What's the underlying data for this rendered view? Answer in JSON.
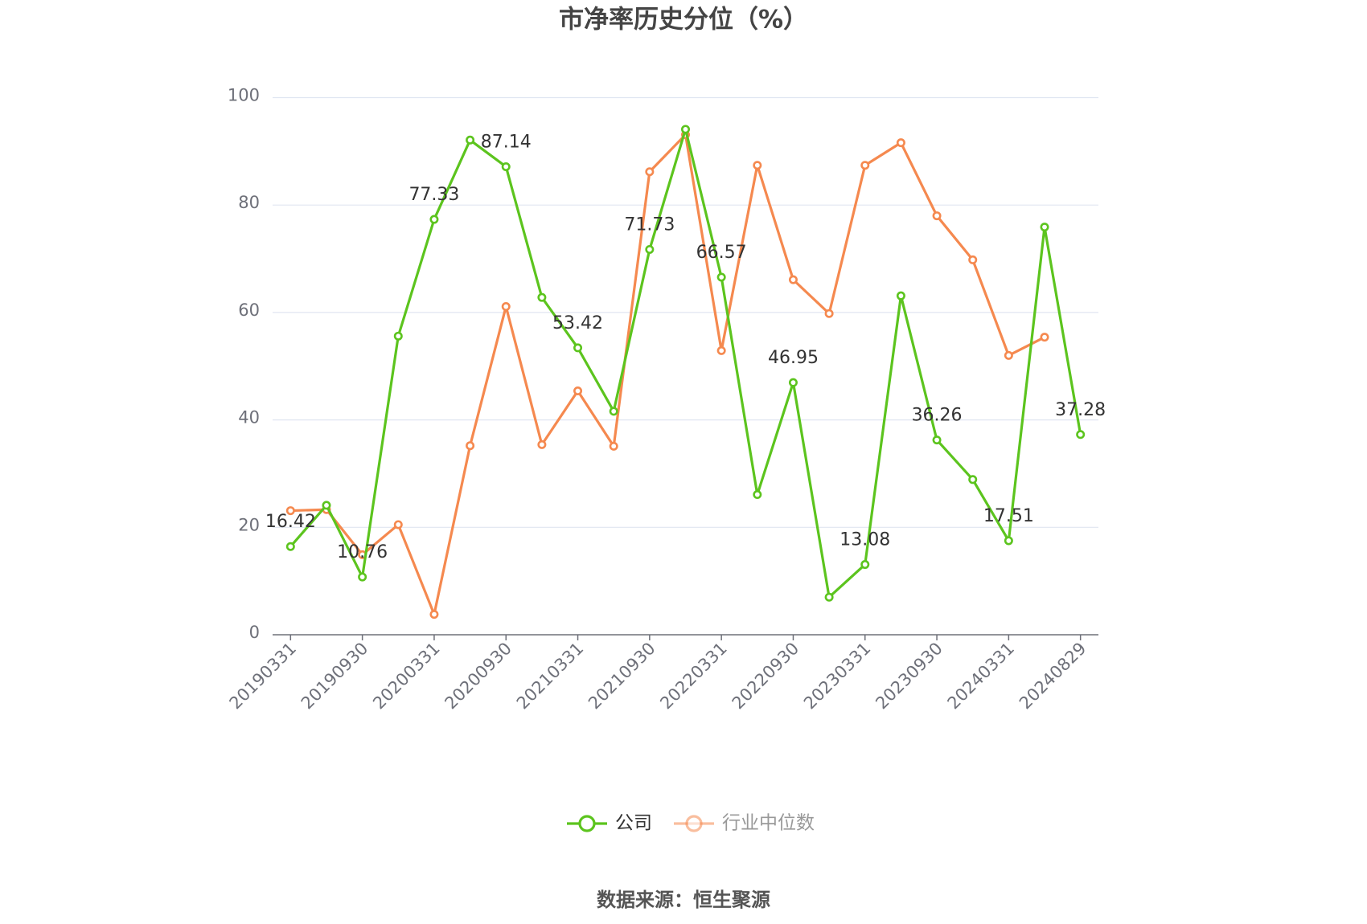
{
  "chart_data": {
    "type": "line",
    "title": "市净率历史分位（%）",
    "source": "数据来源：恒生聚源",
    "categories": [
      "20190331",
      null,
      "20190930",
      null,
      "20200331",
      null,
      "20200930",
      null,
      "20210331",
      null,
      "20210930",
      null,
      "20220331",
      null,
      "20220930",
      null,
      "20230331",
      null,
      "20230930",
      null,
      "20240331",
      null,
      "20240829"
    ],
    "ylim": [
      0,
      100
    ],
    "yticks": [
      0,
      20,
      40,
      60,
      80,
      100
    ],
    "grid": true,
    "legend": "bottom",
    "series": [
      {
        "name": "公司",
        "color": "#5cc41e",
        "values": [
          16.42,
          24.1,
          10.76,
          55.6,
          77.33,
          92.1,
          87.14,
          62.8,
          53.42,
          41.6,
          71.73,
          94.1,
          66.57,
          26.1,
          46.95,
          7.0,
          13.08,
          63.1,
          36.26,
          28.9,
          17.51,
          75.9,
          37.28
        ],
        "value_labels": [
          "16.42",
          null,
          "10.76",
          null,
          "77.33",
          null,
          "87.14",
          null,
          "53.42",
          null,
          "71.73",
          null,
          "66.57",
          null,
          "46.95",
          null,
          "13.08",
          null,
          "36.26",
          null,
          "17.51",
          null,
          "37.28"
        ]
      },
      {
        "name": "行业中位数",
        "color": "#f5894f",
        "values": [
          23.1,
          23.3,
          14.9,
          20.5,
          3.8,
          35.2,
          61.1,
          35.4,
          45.4,
          35.1,
          86.2,
          93.1,
          52.9,
          87.4,
          66.1,
          59.8,
          87.4,
          91.6,
          78.0,
          69.8,
          52.0,
          55.4,
          null
        ]
      }
    ]
  }
}
